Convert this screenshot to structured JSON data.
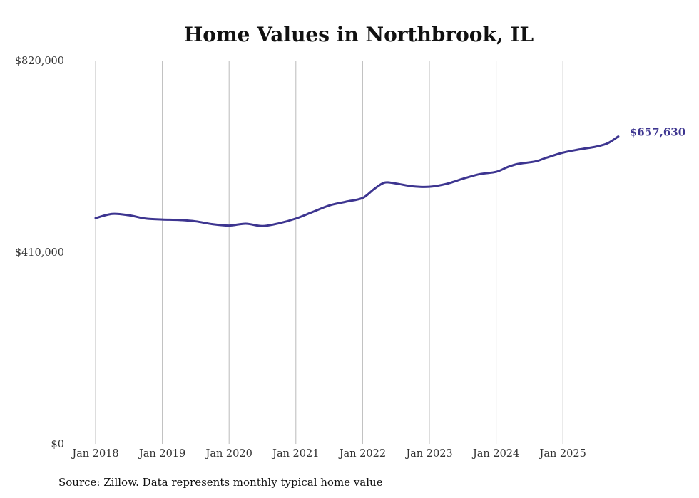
{
  "chart_data": {
    "type": "line",
    "title": "Home Values in Northbrook, IL",
    "source": "Source: Zillow. Data represents monthly typical home value",
    "xlabel": "",
    "ylabel": "",
    "ylim": [
      0,
      820000
    ],
    "y_ticks": [
      0,
      410000,
      820000
    ],
    "y_tick_labels": [
      "$0",
      "$410,000",
      "$820,000"
    ],
    "x_ticks": [
      2018,
      2019,
      2020,
      2021,
      2022,
      2023,
      2024,
      2025
    ],
    "x_tick_labels": [
      "Jan 2018",
      "Jan 2019",
      "Jan 2020",
      "Jan 2021",
      "Jan 2022",
      "Jan 2023",
      "Jan 2024",
      "Jan 2025"
    ],
    "xlim": [
      2018,
      2025.95
    ],
    "grid": "vertical",
    "line_color": "#3d3590",
    "end_label": "$657,630",
    "series": [
      {
        "name": "Typical home value",
        "x": [
          2018.0,
          2018.25,
          2018.5,
          2018.75,
          2019.0,
          2019.25,
          2019.5,
          2019.75,
          2020.0,
          2020.25,
          2020.5,
          2020.75,
          2021.0,
          2021.25,
          2021.5,
          2021.75,
          2022.0,
          2022.17,
          2022.33,
          2022.5,
          2022.75,
          2023.0,
          2023.25,
          2023.5,
          2023.75,
          2024.0,
          2024.17,
          2024.33,
          2024.58,
          2024.75,
          2025.0,
          2025.25,
          2025.5,
          2025.67,
          2025.83
        ],
        "values": [
          483000,
          492000,
          489000,
          482000,
          480000,
          479000,
          476000,
          470000,
          467000,
          471000,
          466000,
          472000,
          482000,
          496000,
          510000,
          518000,
          526000,
          545000,
          559000,
          557000,
          551000,
          550000,
          556000,
          567000,
          577000,
          582000,
          592000,
          599000,
          604000,
          612000,
          623000,
          630000,
          636000,
          643000,
          657630
        ]
      }
    ]
  }
}
